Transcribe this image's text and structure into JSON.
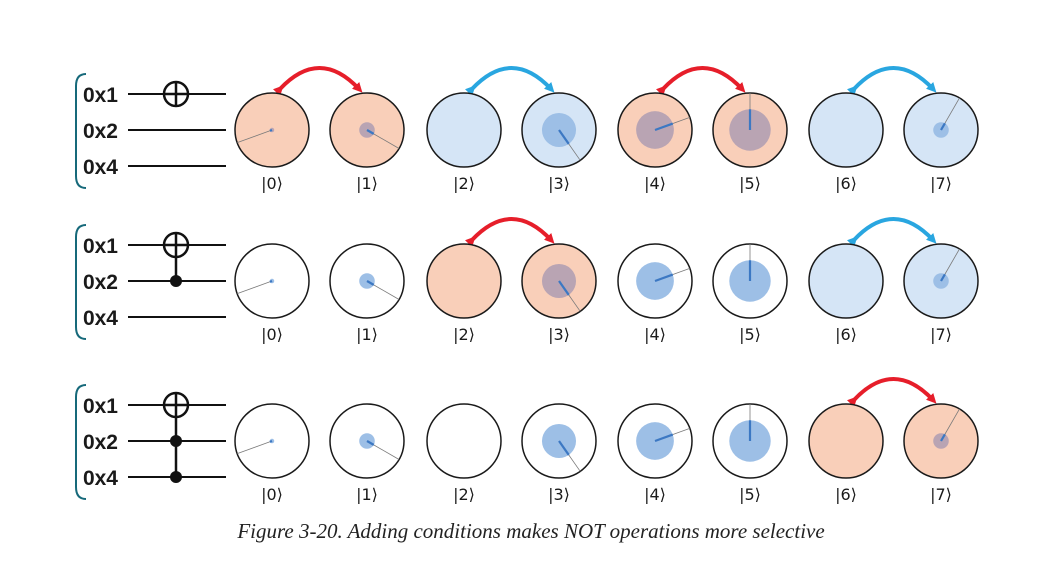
{
  "caption": "Figure 3-20. Adding conditions makes NOT operations more selective",
  "registers": [
    "0x1",
    "0x2",
    "0x4"
  ],
  "kets": [
    "|0⟩",
    "|1⟩",
    "|2⟩",
    "|3⟩",
    "|4⟩",
    "|5⟩",
    "|6⟩",
    "|7⟩"
  ],
  "colors": {
    "red_fill": "#f9cfb9",
    "blue_fill": "#d5e5f6",
    "white_fill": "#ffffff",
    "red_arrow": "#e61e2a",
    "blue_arrow": "#29a6e0",
    "magnitude": "#9dbfe6",
    "magnitude_on_red": "#b9a4b3",
    "phase_line": "#3c78c3",
    "outline": "#1a1a1a"
  },
  "rows": [
    {
      "controls": [],
      "swaps": [
        {
          "pair": [
            0,
            1
          ],
          "color": "red"
        },
        {
          "pair": [
            2,
            3
          ],
          "color": "blue"
        },
        {
          "pair": [
            4,
            5
          ],
          "color": "red"
        },
        {
          "pair": [
            6,
            7
          ],
          "color": "blue"
        }
      ],
      "states": [
        {
          "fill": "red",
          "magnitude": 0.06,
          "phase": 250
        },
        {
          "fill": "red",
          "magnitude": 0.21,
          "phase": 120
        },
        {
          "fill": "blue",
          "magnitude": 0,
          "phase": 0
        },
        {
          "fill": "blue",
          "magnitude": 0.46,
          "phase": 145
        },
        {
          "fill": "red",
          "magnitude": 0.51,
          "phase": 70
        },
        {
          "fill": "red",
          "magnitude": 0.56,
          "phase": 0
        },
        {
          "fill": "blue",
          "magnitude": 0,
          "phase": 0
        },
        {
          "fill": "blue",
          "magnitude": 0.21,
          "phase": 30
        }
      ]
    },
    {
      "controls": [
        1
      ],
      "swaps": [
        {
          "pair": [
            2,
            3
          ],
          "color": "red"
        },
        {
          "pair": [
            6,
            7
          ],
          "color": "blue"
        }
      ],
      "states": [
        {
          "fill": "white",
          "magnitude": 0.06,
          "phase": 250
        },
        {
          "fill": "white",
          "magnitude": 0.21,
          "phase": 120
        },
        {
          "fill": "red",
          "magnitude": 0,
          "phase": 0
        },
        {
          "fill": "red",
          "magnitude": 0.46,
          "phase": 145
        },
        {
          "fill": "white",
          "magnitude": 0.51,
          "phase": 70
        },
        {
          "fill": "white",
          "magnitude": 0.56,
          "phase": 0
        },
        {
          "fill": "blue",
          "magnitude": 0,
          "phase": 0
        },
        {
          "fill": "blue",
          "magnitude": 0.21,
          "phase": 30
        }
      ]
    },
    {
      "controls": [
        1,
        2
      ],
      "swaps": [
        {
          "pair": [
            6,
            7
          ],
          "color": "red"
        }
      ],
      "states": [
        {
          "fill": "white",
          "magnitude": 0.06,
          "phase": 250
        },
        {
          "fill": "white",
          "magnitude": 0.21,
          "phase": 120
        },
        {
          "fill": "white",
          "magnitude": 0,
          "phase": 0
        },
        {
          "fill": "white",
          "magnitude": 0.46,
          "phase": 145
        },
        {
          "fill": "white",
          "magnitude": 0.51,
          "phase": 70
        },
        {
          "fill": "white",
          "magnitude": 0.56,
          "phase": 0
        },
        {
          "fill": "red",
          "magnitude": 0,
          "phase": 0
        },
        {
          "fill": "red",
          "magnitude": 0.21,
          "phase": 30
        }
      ]
    }
  ]
}
